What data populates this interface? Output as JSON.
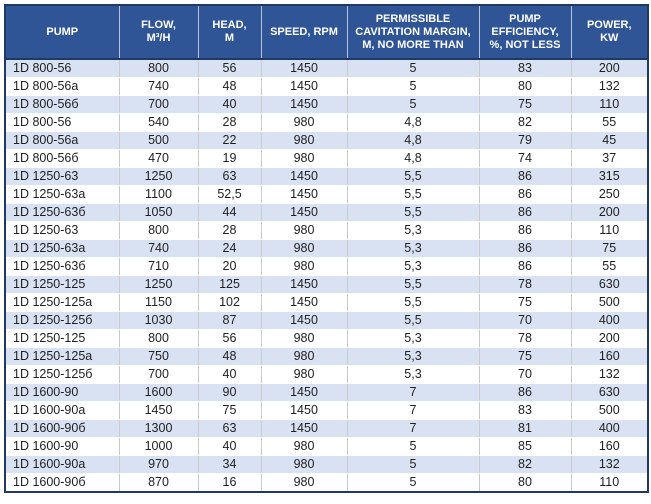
{
  "colors": {
    "header_bg": "#2F5597",
    "header_text": "#FFFFFF",
    "stripe_row": "#D9E2F3",
    "plain_row": "#FFFFFF",
    "outer_border": "#1F3864",
    "body_text": "#1F1F1F",
    "gridline": "#C9C9C9"
  },
  "chart_data": {
    "type": "table",
    "headers": [
      "PUMP",
      "FLOW,\nM³/H",
      "HEAD,\nM",
      "SPEED, RPM",
      "PERMISSIBLE\nCAVITATION MARGIN,\nM, NO MORE THAN",
      "PUMP\nEFFICIENCY,\n%, NOT LESS",
      "POWER,\nKW"
    ],
    "column_keys": [
      "pump",
      "flow",
      "head",
      "speed",
      "cavitation_margin",
      "efficiency",
      "power"
    ],
    "rows": [
      [
        "1D 800-56",
        "800",
        "56",
        "1450",
        "5",
        "83",
        "200"
      ],
      [
        "1D 800-56a",
        "740",
        "48",
        "1450",
        "5",
        "80",
        "132"
      ],
      [
        "1D 800-56б",
        "700",
        "40",
        "1450",
        "5",
        "75",
        "110"
      ],
      [
        "1D 800-56",
        "540",
        "28",
        "980",
        "4,8",
        "82",
        "55"
      ],
      [
        "1D 800-56a",
        "500",
        "22",
        "980",
        "4,8",
        "79",
        "45"
      ],
      [
        "1D 800-56б",
        "470",
        "19",
        "980",
        "4,8",
        "74",
        "37"
      ],
      [
        "1D 1250-63",
        "1250",
        "63",
        "1450",
        "5,5",
        "86",
        "315"
      ],
      [
        "1D 1250-63a",
        "1100",
        "52,5",
        "1450",
        "5,5",
        "86",
        "250"
      ],
      [
        "1D 1250-63б",
        "1050",
        "44",
        "1450",
        "5,5",
        "86",
        "200"
      ],
      [
        "1D 1250-63",
        "800",
        "28",
        "980",
        "5,3",
        "86",
        "110"
      ],
      [
        "1D 1250-63a",
        "740",
        "24",
        "980",
        "5,3",
        "86",
        "75"
      ],
      [
        "1D 1250-63б",
        "710",
        "20",
        "980",
        "5,3",
        "86",
        "55"
      ],
      [
        "1D 1250-125",
        "1250",
        "125",
        "1450",
        "5,5",
        "78",
        "630"
      ],
      [
        "1D 1250-125a",
        "1150",
        "102",
        "1450",
        "5,5",
        "75",
        "500"
      ],
      [
        "1D 1250-125б",
        "1030",
        "87",
        "1450",
        "5,5",
        "70",
        "400"
      ],
      [
        "1D 1250-125",
        "800",
        "56",
        "980",
        "5,3",
        "78",
        "200"
      ],
      [
        "1D 1250-125a",
        "750",
        "48",
        "980",
        "5,3",
        "75",
        "160"
      ],
      [
        "1D 1250-125б",
        "700",
        "40",
        "980",
        "5,3",
        "70",
        "132"
      ],
      [
        "1D 1600-90",
        "1600",
        "90",
        "1450",
        "7",
        "86",
        "630"
      ],
      [
        "1D 1600-90a",
        "1450",
        "75",
        "1450",
        "7",
        "83",
        "500"
      ],
      [
        "1D 1600-90б",
        "1300",
        "63",
        "1450",
        "7",
        "81",
        "400"
      ],
      [
        "1D 1600-90",
        "1000",
        "40",
        "980",
        "5",
        "85",
        "160"
      ],
      [
        "1D 1600-90a",
        "970",
        "34",
        "980",
        "5",
        "82",
        "132"
      ],
      [
        "1D 1600-90б",
        "870",
        "16",
        "980",
        "5",
        "80",
        "110"
      ]
    ]
  }
}
